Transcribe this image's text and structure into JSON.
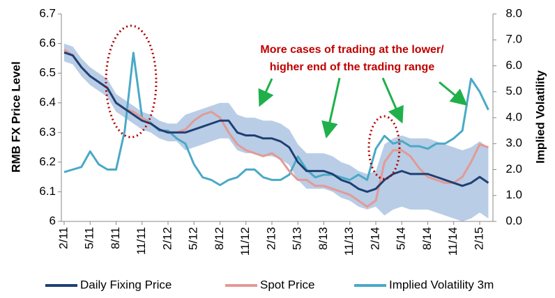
{
  "chart_data": {
    "type": "line",
    "categories": [
      "2/11",
      null,
      null,
      "5/11",
      null,
      null,
      "8/11",
      null,
      null,
      "11/11",
      null,
      null,
      "2/12",
      null,
      null,
      "5/12",
      null,
      null,
      "8/12",
      null,
      null,
      "11/12",
      null,
      null,
      "2/13",
      null,
      null,
      "5/13",
      null,
      null,
      "8/13",
      null,
      null,
      "11/13",
      null,
      null,
      "2/14",
      null,
      null,
      "5/14",
      null,
      null,
      "8/14",
      null,
      null,
      "11/14",
      null,
      null,
      "2/15",
      null
    ],
    "series": [
      {
        "name": "Daily Fixing Price",
        "color": "#1f3f73",
        "values": [
          6.57,
          6.56,
          6.52,
          6.49,
          6.47,
          6.45,
          6.4,
          6.38,
          6.36,
          6.34,
          6.33,
          6.31,
          6.3,
          6.3,
          6.3,
          6.31,
          6.32,
          6.33,
          6.34,
          6.34,
          6.3,
          6.29,
          6.29,
          6.28,
          6.28,
          6.27,
          6.25,
          6.2,
          6.17,
          6.17,
          6.17,
          6.16,
          6.14,
          6.13,
          6.11,
          6.1,
          6.11,
          6.14,
          6.16,
          6.17,
          6.16,
          6.16,
          6.16,
          6.15,
          6.14,
          6.13,
          6.12,
          6.13,
          6.15,
          6.13
        ]
      },
      {
        "name": "Spot Price",
        "color": "#e39a94",
        "values": [
          6.58,
          6.56,
          6.52,
          6.49,
          6.47,
          6.45,
          6.4,
          6.38,
          6.37,
          6.35,
          6.33,
          6.31,
          6.3,
          6.3,
          6.31,
          6.34,
          6.36,
          6.37,
          6.35,
          6.3,
          6.26,
          6.24,
          6.23,
          6.22,
          6.23,
          6.21,
          6.17,
          6.14,
          6.14,
          6.12,
          6.12,
          6.11,
          6.1,
          6.09,
          6.07,
          6.05,
          6.07,
          6.2,
          6.24,
          6.24,
          6.22,
          6.18,
          6.15,
          6.14,
          6.13,
          6.13,
          6.15,
          6.2,
          6.26,
          6.25
        ]
      },
      {
        "name": "Implied Volatility 3m",
        "color": "#4aa9c6",
        "axis": "y2",
        "values": [
          1.9,
          2.0,
          2.1,
          2.7,
          2.2,
          2.0,
          2.0,
          3.5,
          6.5,
          4.0,
          3.8,
          3.5,
          3.5,
          3.2,
          3.0,
          2.2,
          1.7,
          1.6,
          1.4,
          1.6,
          1.7,
          2.0,
          2.0,
          1.7,
          1.6,
          1.6,
          1.8,
          2.5,
          2.0,
          1.7,
          1.8,
          1.8,
          1.7,
          1.6,
          1.8,
          1.6,
          2.8,
          3.3,
          3.0,
          3.1,
          2.9,
          2.9,
          2.8,
          3.0,
          3.0,
          3.2,
          3.5,
          5.5,
          5.0,
          4.3
        ]
      }
    ],
    "band": {
      "color": "#b9cde6",
      "lower": [
        6.54,
        6.53,
        6.49,
        6.46,
        6.44,
        6.42,
        6.37,
        6.35,
        6.33,
        6.31,
        6.3,
        6.28,
        6.27,
        6.27,
        6.24,
        6.25,
        6.26,
        6.27,
        6.28,
        6.28,
        6.24,
        6.23,
        6.23,
        6.22,
        6.22,
        6.21,
        6.19,
        6.14,
        6.11,
        6.11,
        6.11,
        6.1,
        6.08,
        6.07,
        6.05,
        6.04,
        6.05,
        6.02,
        6.04,
        6.05,
        6.04,
        6.04,
        6.04,
        6.03,
        6.02,
        6.01,
        6.0,
        6.01,
        6.03,
        6.01
      ],
      "upper": [
        6.6,
        6.59,
        6.55,
        6.52,
        6.5,
        6.48,
        6.43,
        6.41,
        6.39,
        6.37,
        6.36,
        6.34,
        6.33,
        6.33,
        6.36,
        6.37,
        6.38,
        6.39,
        6.4,
        6.4,
        6.36,
        6.35,
        6.35,
        6.34,
        6.34,
        6.33,
        6.31,
        6.26,
        6.23,
        6.23,
        6.23,
        6.22,
        6.2,
        6.19,
        6.17,
        6.16,
        6.17,
        6.26,
        6.28,
        6.29,
        6.28,
        6.28,
        6.28,
        6.27,
        6.26,
        6.25,
        6.24,
        6.25,
        6.27,
        6.25
      ]
    },
    "ylabel": "RMB FX Price Level",
    "y2label": "Implied Volatility",
    "ylim": [
      6,
      6.7
    ],
    "yticks": [
      6.7,
      6.6,
      6.5,
      6.4,
      6.3,
      6.2,
      6.1,
      6
    ],
    "y2lim": [
      0,
      8
    ],
    "y2ticks": [
      {
        "value": 8,
        "label": "8.0"
      },
      {
        "value": 7,
        "label": "7.0"
      },
      {
        "value": 6,
        "label": "6.0"
      },
      {
        "value": 5,
        "label": "5.0"
      },
      {
        "value": 4,
        "label": "4.0"
      },
      {
        "value": 3,
        "label": "3.0"
      },
      {
        "value": 2,
        "label": "2.0"
      },
      {
        "value": 1,
        "label": "1.0"
      },
      {
        "value": 0,
        "label": "0.0"
      }
    ],
    "annotations": [
      "More cases of trading at the lower/",
      "higher end of the trading range"
    ],
    "legend": "bottom",
    "grid": false
  }
}
